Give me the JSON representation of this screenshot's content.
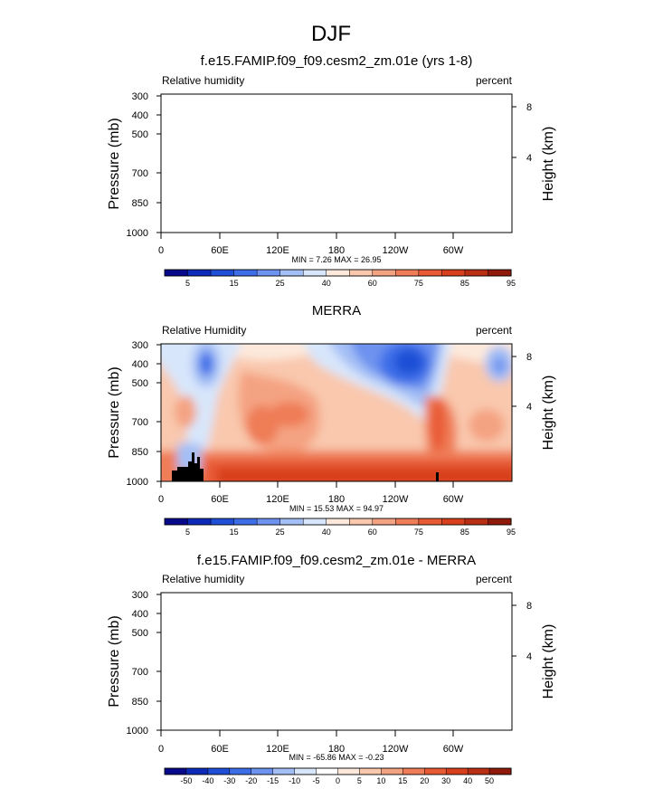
{
  "main_title": "DJF",
  "colors": {
    "rh_levels": [
      "#08088a",
      "#0e2ab8",
      "#1f4fd6",
      "#3d6ee8",
      "#6d92ef",
      "#a4bff5",
      "#d8e6fb",
      "#fde9dc",
      "#f9c8ad",
      "#f4a382",
      "#ef7d57",
      "#e85a34",
      "#d8401d",
      "#b92f14",
      "#8f1a0c"
    ],
    "diff_levels": [
      "#08088a",
      "#0e2ab8",
      "#1f4fd6",
      "#3d6ee8",
      "#6d92ef",
      "#a4bff5",
      "#d8e6fb",
      "#ffffff",
      "#fde9dc",
      "#f9c8ad",
      "#f4a382",
      "#ef7d57",
      "#e85a34",
      "#d8401d",
      "#b92f14",
      "#8f1a0c"
    ]
  },
  "chart_data": [
    {
      "type": "heatmap",
      "title": "f.e15.FAMIP.f09_f09.cesm2_zm.01e (yrs 1-8)",
      "left_label": "Relative humidity",
      "right_label": "percent",
      "ylabel": "Pressure (mb)",
      "ylabel_right": "Height (km)",
      "y_ticks": [
        "300",
        "400",
        "500",
        "700",
        "850",
        "1000"
      ],
      "y_right_ticks": [
        "8",
        "4"
      ],
      "x_ticks": [
        "0",
        "60E",
        "120E",
        "180",
        "120W",
        "60W"
      ],
      "min_max": "MIN =   7.26  MAX =  26.95",
      "colorbar_ticks": [
        "5",
        "15",
        "25",
        "40",
        "60",
        "75",
        "85",
        "95"
      ],
      "filled": false
    },
    {
      "type": "heatmap",
      "title": "MERRA",
      "left_label": "Relative Humidity",
      "right_label": "percent",
      "ylabel": "Pressure (mb)",
      "ylabel_right": "Height (km)",
      "y_ticks": [
        "300",
        "400",
        "500",
        "700",
        "850",
        "1000"
      ],
      "y_right_ticks": [
        "8",
        "4"
      ],
      "x_ticks": [
        "0",
        "60E",
        "120E",
        "180",
        "120W",
        "60W"
      ],
      "min_max": "MIN =  15.53  MAX =  94.97",
      "colorbar_ticks": [
        "5",
        "15",
        "25",
        "40",
        "60",
        "75",
        "85",
        "95"
      ],
      "filled": true
    },
    {
      "type": "heatmap",
      "title": "f.e15.FAMIP.f09_f09.cesm2_zm.01e - MERRA",
      "left_label": "Relative humidity",
      "right_label": "percent",
      "ylabel": "Pressure (mb)",
      "ylabel_right": "Height (km)",
      "y_ticks": [
        "300",
        "400",
        "500",
        "700",
        "850",
        "1000"
      ],
      "y_right_ticks": [
        "8",
        "4"
      ],
      "x_ticks": [
        "0",
        "60E",
        "120E",
        "180",
        "120W",
        "60W"
      ],
      "min_max": "MIN = -65.86  MAX =  -0.23",
      "colorbar_ticks": [
        "-50",
        "-40",
        "-30",
        "-20",
        "-15",
        "-10",
        "-5",
        "0",
        "5",
        "10",
        "15",
        "20",
        "30",
        "40",
        "50"
      ],
      "filled": false
    }
  ]
}
